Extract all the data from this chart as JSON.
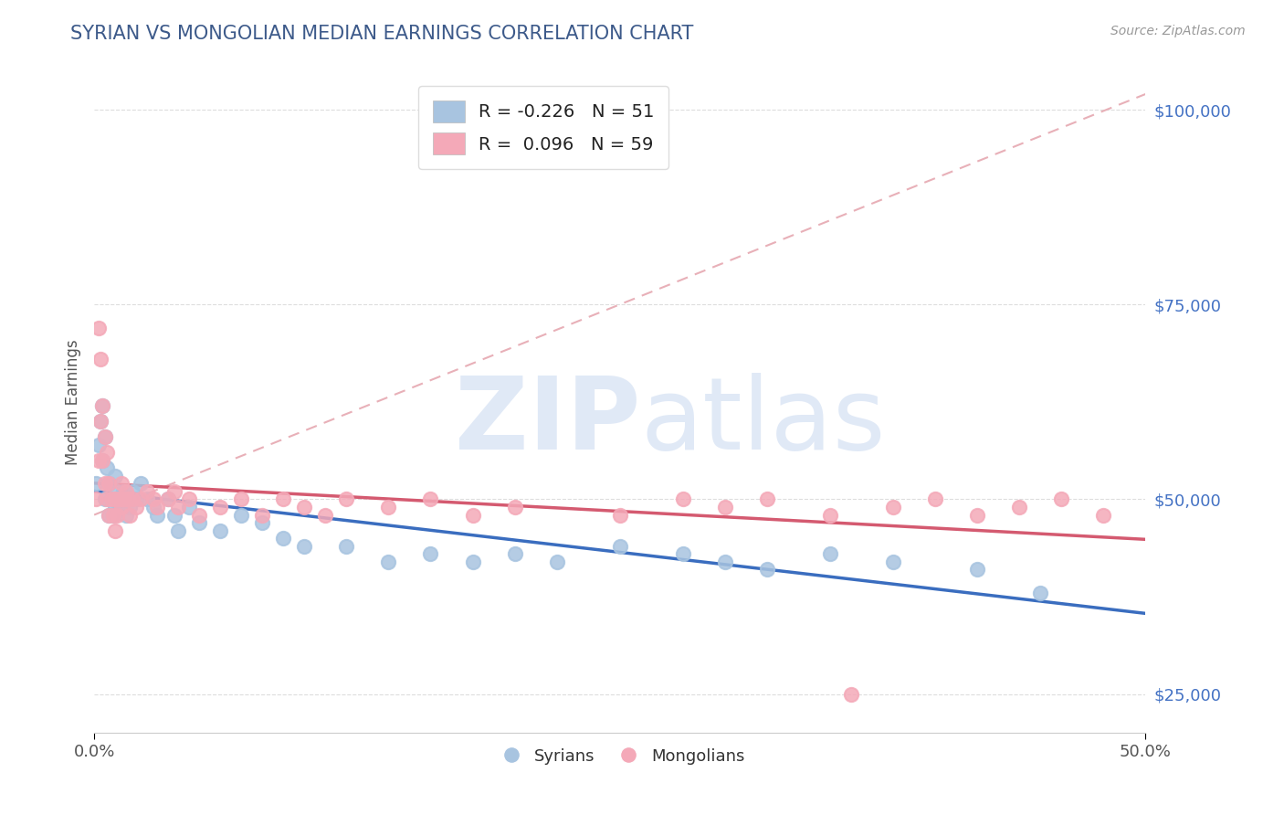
{
  "title": "SYRIAN VS MONGOLIAN MEDIAN EARNINGS CORRELATION CHART",
  "source": "Source: ZipAtlas.com",
  "ylabel": "Median Earnings",
  "xlim": [
    0.0,
    0.5
  ],
  "ylim": [
    20000,
    105000
  ],
  "ytick_values": [
    25000,
    50000,
    75000,
    100000
  ],
  "ytick_labels": [
    "$25,000",
    "$50,000",
    "$75,000",
    "$100,000"
  ],
  "title_color": "#3d5a8a",
  "title_fontsize": 15,
  "watermark_zip": "ZIP",
  "watermark_atlas": "atlas",
  "legend_entry1": "R = -0.226   N = 51",
  "legend_entry2": "R =  0.096   N = 59",
  "legend_label1": "Syrians",
  "legend_label2": "Mongolians",
  "color_syrians": "#a8c4e0",
  "color_mongolians": "#f4a9b8",
  "line_color_syrians": "#3a6dbf",
  "line_color_mongolians": "#d45a70",
  "diag_line_color": "#e8b0b8",
  "grid_color": "#dddddd",
  "background_color": "#ffffff",
  "ytick_color": "#4472c4",
  "syrians_x": [
    0.001,
    0.002,
    0.003,
    0.004,
    0.004,
    0.005,
    0.005,
    0.006,
    0.007,
    0.007,
    0.008,
    0.009,
    0.01,
    0.01,
    0.011,
    0.012,
    0.013,
    0.014,
    0.015,
    0.016,
    0.017,
    0.018,
    0.02,
    0.022,
    0.025,
    0.028,
    0.03,
    0.035,
    0.038,
    0.04,
    0.045,
    0.05,
    0.06,
    0.07,
    0.08,
    0.09,
    0.1,
    0.12,
    0.14,
    0.16,
    0.18,
    0.2,
    0.22,
    0.25,
    0.28,
    0.3,
    0.32,
    0.35,
    0.38,
    0.42,
    0.45
  ],
  "syrians_y": [
    52000,
    57000,
    60000,
    55000,
    62000,
    58000,
    50000,
    54000,
    52000,
    48000,
    50000,
    48000,
    53000,
    49000,
    51000,
    50000,
    49000,
    51000,
    48000,
    50000,
    49000,
    51000,
    50000,
    52000,
    50000,
    49000,
    48000,
    50000,
    48000,
    46000,
    49000,
    47000,
    46000,
    48000,
    47000,
    45000,
    44000,
    44000,
    42000,
    43000,
    42000,
    43000,
    42000,
    44000,
    43000,
    42000,
    41000,
    43000,
    42000,
    41000,
    38000
  ],
  "mongolians_x": [
    0.001,
    0.002,
    0.002,
    0.003,
    0.003,
    0.004,
    0.004,
    0.005,
    0.005,
    0.006,
    0.006,
    0.007,
    0.007,
    0.008,
    0.009,
    0.01,
    0.01,
    0.011,
    0.012,
    0.013,
    0.013,
    0.014,
    0.015,
    0.016,
    0.017,
    0.018,
    0.02,
    0.022,
    0.025,
    0.028,
    0.03,
    0.035,
    0.038,
    0.04,
    0.045,
    0.05,
    0.06,
    0.07,
    0.08,
    0.09,
    0.1,
    0.11,
    0.12,
    0.14,
    0.16,
    0.18,
    0.2,
    0.25,
    0.28,
    0.3,
    0.32,
    0.35,
    0.36,
    0.38,
    0.4,
    0.42,
    0.44,
    0.46,
    0.48
  ],
  "mongolians_y": [
    50000,
    72000,
    55000,
    68000,
    60000,
    62000,
    55000,
    58000,
    52000,
    56000,
    50000,
    52000,
    48000,
    50000,
    48000,
    50000,
    46000,
    48000,
    50000,
    52000,
    49000,
    50000,
    51000,
    50000,
    48000,
    50000,
    49000,
    50000,
    51000,
    50000,
    49000,
    50000,
    51000,
    49000,
    50000,
    48000,
    49000,
    50000,
    48000,
    50000,
    49000,
    48000,
    50000,
    49000,
    50000,
    48000,
    49000,
    48000,
    50000,
    49000,
    50000,
    48000,
    25000,
    49000,
    50000,
    48000,
    49000,
    50000,
    48000
  ]
}
